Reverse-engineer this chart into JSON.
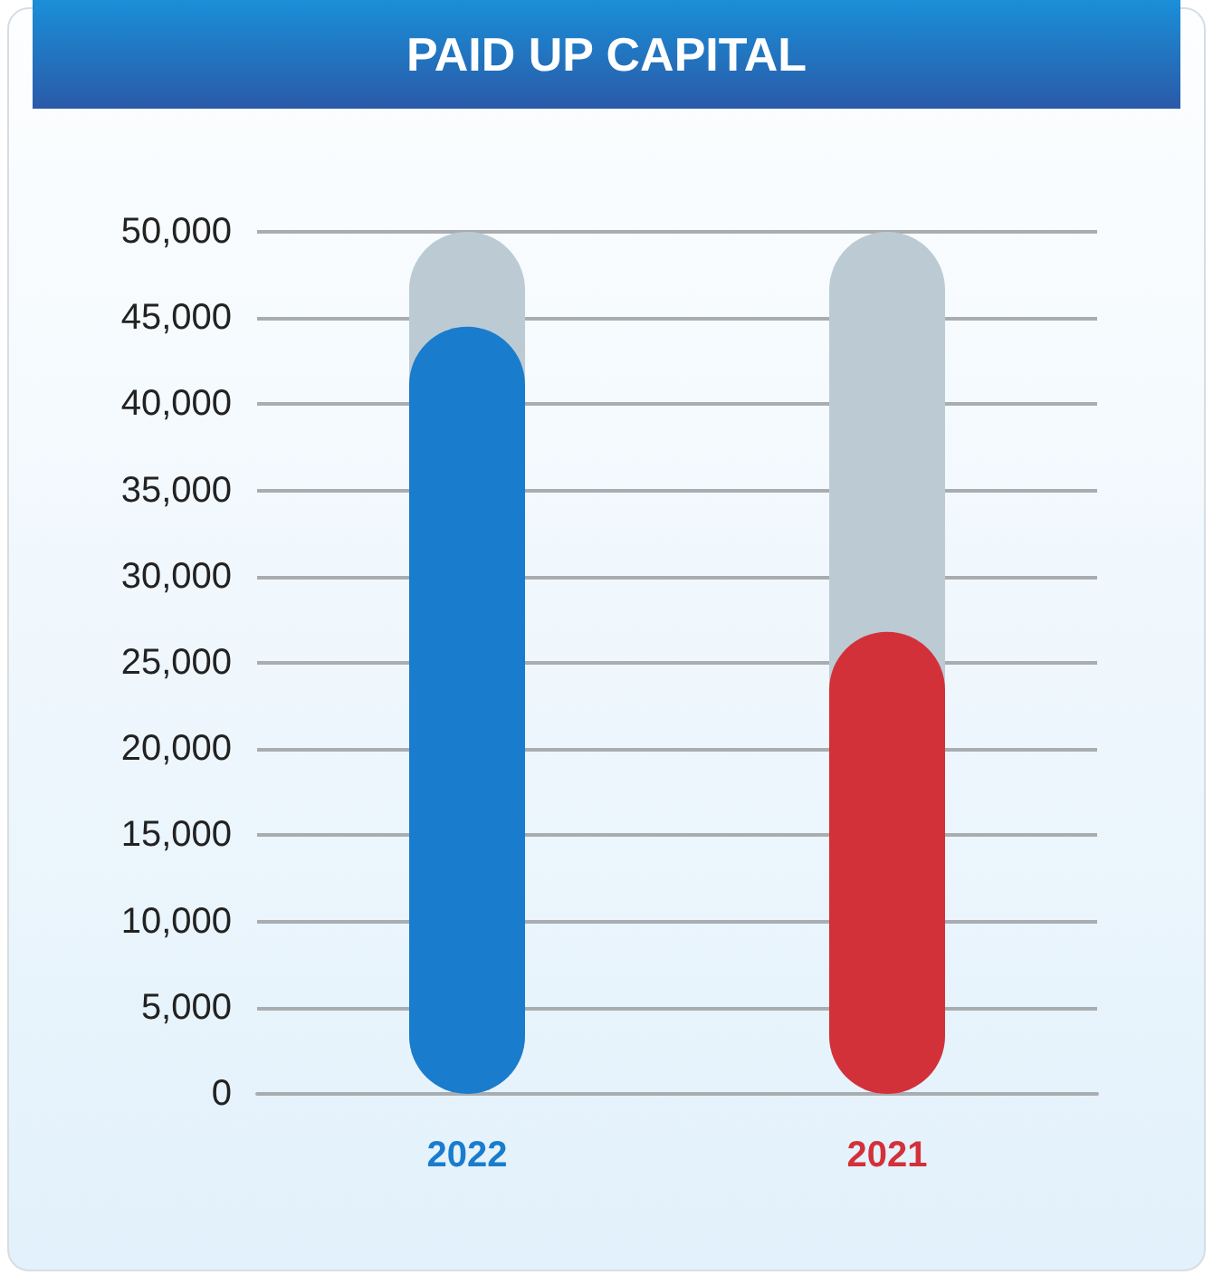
{
  "chart_data": {
    "type": "bar",
    "title": "PAID UP CAPITAL",
    "categories": [
      "2022",
      "2021"
    ],
    "values": [
      44500,
      26800
    ],
    "colors": [
      "#1a7ccc",
      "#d3313a"
    ],
    "ylim": [
      0,
      50000
    ],
    "yticks": [
      0,
      {
        "value": 5000,
        "label": "5,000"
      },
      {
        "value": 10000,
        "label": "10,000"
      },
      {
        "value": 15000,
        "label": "15,000"
      },
      {
        "value": 20000,
        "label": "20,000"
      },
      {
        "value": 25000,
        "label": "25,000"
      },
      {
        "value": 30000,
        "label": "30,000"
      },
      {
        "value": 35000,
        "label": "35,000"
      },
      {
        "value": 40000,
        "label": "40,000"
      },
      {
        "value": 45000,
        "label": "45,000"
      },
      {
        "value": 50000,
        "label": "50,000"
      }
    ],
    "grid": "y"
  }
}
